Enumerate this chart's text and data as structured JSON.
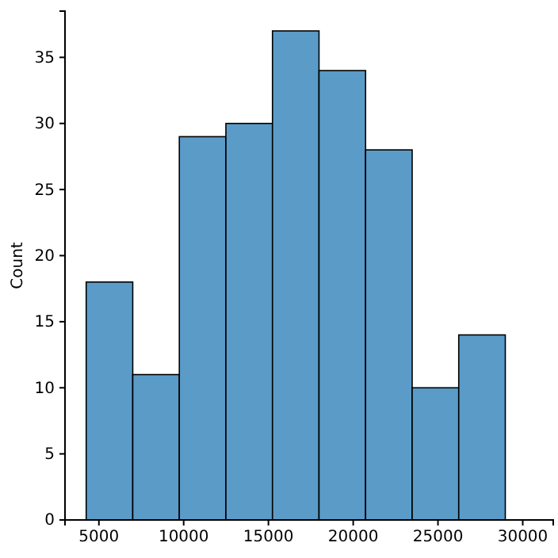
{
  "chart_data": {
    "type": "histogram",
    "ylabel": "Count",
    "bins": [
      4250,
      6997,
      9744,
      12491,
      15238,
      17984,
      20731,
      23478,
      26225,
      28972
    ],
    "values": [
      18,
      11,
      29,
      30,
      37,
      34,
      28,
      10,
      14
    ],
    "color": "#5a9bc8",
    "xlim": [
      3000,
      31800
    ],
    "xticks": [
      5000,
      10000,
      15000,
      20000,
      25000,
      30000
    ],
    "ylim": [
      0,
      38.5
    ],
    "yticks": [
      0,
      5,
      10,
      15,
      20,
      25,
      30,
      35
    ],
    "grid": false
  }
}
